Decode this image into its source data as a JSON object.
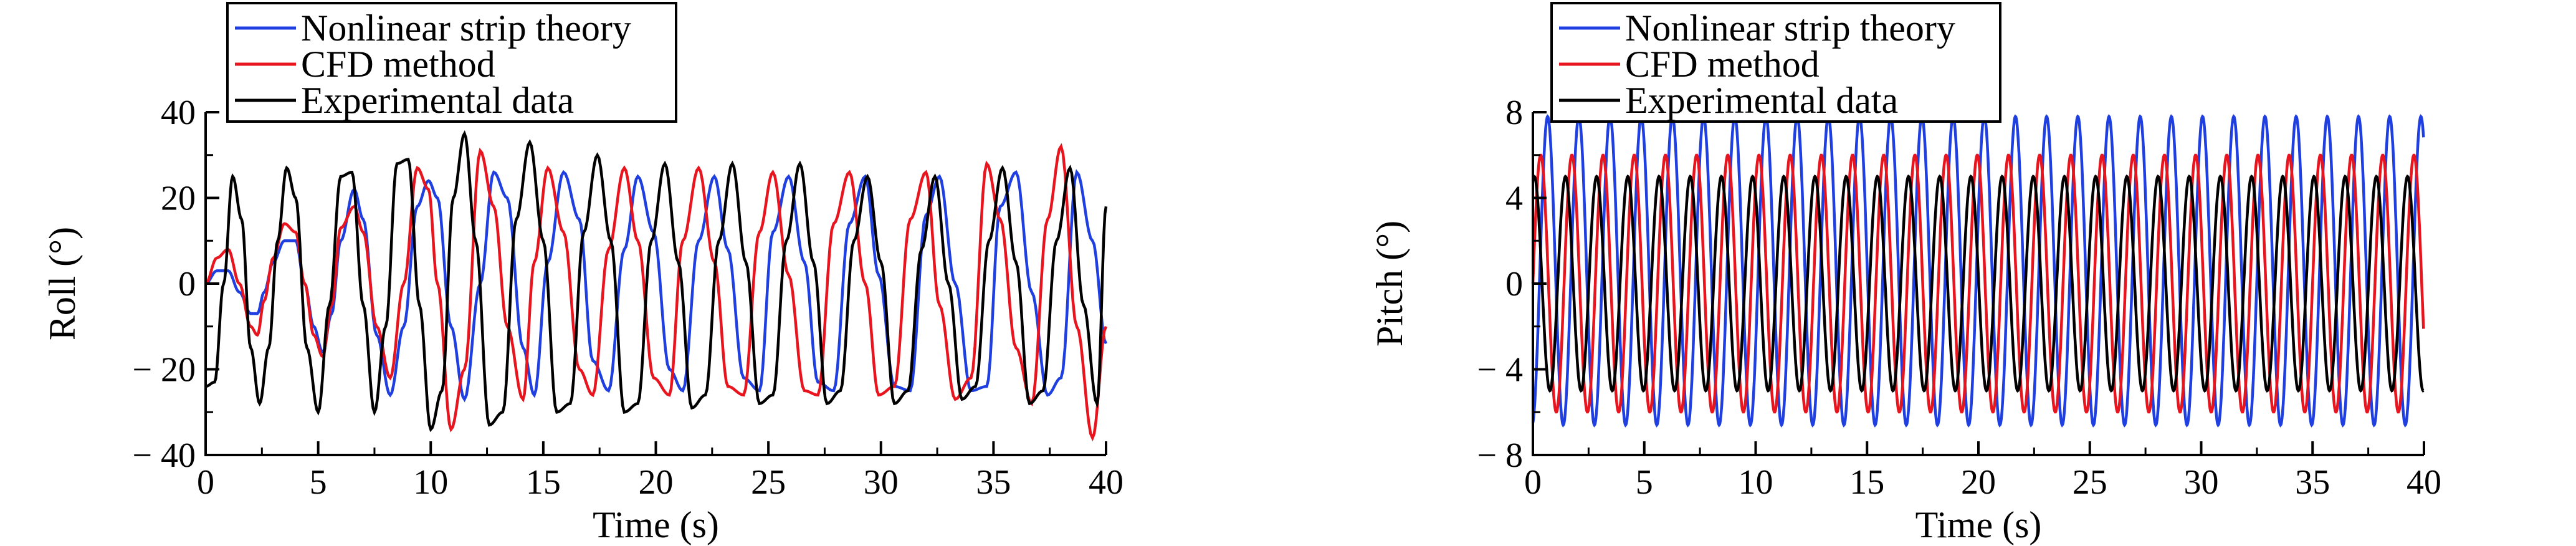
{
  "colors": {
    "nonlinear": "#1f3fe0",
    "cfd": "#e8141e",
    "experimental": "#000000",
    "axis": "#000000"
  },
  "chart_data": [
    {
      "type": "line",
      "title": "",
      "xlabel": "Time (s)",
      "ylabel": "Roll (°)",
      "xlim": [
        0,
        40
      ],
      "ylim": [
        -40,
        40
      ],
      "xticks": [
        0,
        5,
        10,
        15,
        20,
        25,
        30,
        35,
        40
      ],
      "yticks": [
        40,
        20,
        0,
        -20,
        -40
      ],
      "ytick_labels": [
        "40",
        "20",
        "0",
        "− 20",
        "− 40"
      ],
      "grid": false,
      "legend_position": "top-left, above plot",
      "series": [
        {
          "name": "Nonlinear strip theory",
          "color": "#1f3fe0",
          "x": [
            0,
            0.5,
            1.0,
            1.5,
            2.0,
            2.3,
            2.6,
            3.0,
            3.5,
            4.0,
            4.4,
            4.8,
            5.2,
            5.6,
            6.0,
            6.6,
            7.0,
            7.6,
            8.2,
            8.8,
            9.4,
            9.9,
            10.3,
            10.9,
            11.5,
            12.2,
            12.8,
            13.4,
            14.1,
            14.6,
            15.2,
            15.9,
            16.6,
            17.2,
            17.9,
            18.6,
            19.2,
            19.9,
            20.6,
            21.2,
            21.9,
            22.6,
            23.2,
            23.9,
            24.6,
            25.2,
            25.9,
            26.6,
            27.2,
            27.9,
            28.6,
            29.3,
            29.9,
            30.6,
            31.3,
            32.0,
            32.6,
            33.3,
            34.0,
            34.7,
            35.3,
            36.0,
            36.7,
            37.4,
            38.0,
            38.7,
            39.4,
            40.0
          ],
          "values": [
            0,
            3,
            3,
            -2,
            -7,
            -7,
            -2,
            5,
            10,
            10,
            0,
            -10,
            -16,
            -7,
            10,
            22,
            15,
            -12,
            -26,
            -10,
            18,
            24,
            20,
            -10,
            -27,
            0,
            26,
            20,
            -15,
            -26,
            5,
            26,
            15,
            -18,
            -25,
            8,
            25,
            12,
            -20,
            -25,
            10,
            25,
            8,
            -22,
            -25,
            12,
            25,
            5,
            -23,
            -25,
            14,
            25,
            2,
            -24,
            -25,
            16,
            25,
            0,
            -25,
            -24,
            18,
            26,
            -2,
            -26,
            -22,
            26,
            10,
            -14
          ]
        },
        {
          "name": "CFD method",
          "color": "#e8141e",
          "x": [
            0,
            0.5,
            1.0,
            1.5,
            2.0,
            2.3,
            2.6,
            3.0,
            3.5,
            4.0,
            4.4,
            4.8,
            5.2,
            5.6,
            6.0,
            6.6,
            7.0,
            7.6,
            8.2,
            8.8,
            9.4,
            9.9,
            10.3,
            10.9,
            11.5,
            12.2,
            12.8,
            13.4,
            14.1,
            14.6,
            15.2,
            15.9,
            16.6,
            17.2,
            17.9,
            18.6,
            19.2,
            19.9,
            20.6,
            21.2,
            21.9,
            22.6,
            23.2,
            23.9,
            24.6,
            25.2,
            25.9,
            26.6,
            27.2,
            27.9,
            28.6,
            29.3,
            29.9,
            30.6,
            31.3,
            32.0,
            32.6,
            33.3,
            34.0,
            34.7,
            35.3,
            36.0,
            36.7,
            37.4,
            38.0,
            38.7,
            39.4,
            40.0
          ],
          "values": [
            0,
            6,
            8,
            0,
            -10,
            -12,
            -4,
            6,
            14,
            12,
            0,
            -12,
            -17,
            -5,
            13,
            18,
            12,
            -10,
            -22,
            0,
            27,
            22,
            0,
            -34,
            -20,
            31,
            18,
            -10,
            -27,
            5,
            27,
            12,
            -20,
            -26,
            8,
            27,
            10,
            -22,
            -26,
            10,
            27,
            5,
            -24,
            -26,
            12,
            26,
            2,
            -25,
            -26,
            14,
            26,
            0,
            -26,
            -24,
            15,
            26,
            -5,
            -27,
            -22,
            28,
            15,
            -15,
            -28,
            15,
            32,
            -10,
            -36,
            -10
          ]
        },
        {
          "name": "Experimental data",
          "color": "#000000",
          "x": [
            0,
            0.4,
            0.8,
            1.2,
            1.6,
            2.0,
            2.4,
            2.8,
            3.2,
            3.6,
            4.0,
            4.5,
            5.0,
            5.5,
            6.0,
            6.5,
            7.0,
            7.5,
            8.0,
            8.5,
            9.0,
            9.5,
            10.0,
            10.5,
            11.0,
            11.5,
            12.0,
            12.6,
            13.2,
            13.8,
            14.4,
            15.0,
            15.6,
            16.2,
            16.8,
            17.4,
            18.0,
            18.6,
            19.2,
            19.8,
            20.4,
            21.0,
            21.6,
            22.2,
            22.8,
            23.4,
            24.0,
            24.6,
            25.2,
            25.8,
            26.4,
            27.0,
            27.6,
            28.2,
            28.8,
            29.4,
            30.0,
            30.6,
            31.2,
            31.8,
            32.4,
            33.0,
            33.6,
            34.2,
            34.8,
            35.4,
            36.0,
            36.6,
            37.2,
            37.8,
            38.4,
            39.0,
            39.6,
            40.0
          ],
          "values": [
            -24,
            -23,
            0,
            25,
            15,
            -15,
            -28,
            -15,
            10,
            27,
            20,
            -15,
            -30,
            -5,
            25,
            26,
            -5,
            -30,
            -10,
            28,
            29,
            -5,
            -34,
            -25,
            20,
            35,
            10,
            -33,
            -30,
            15,
            33,
            10,
            -30,
            -28,
            12,
            30,
            10,
            -30,
            -28,
            10,
            28,
            5,
            -29,
            -26,
            10,
            28,
            5,
            -28,
            -26,
            10,
            28,
            5,
            -28,
            -25,
            10,
            25,
            5,
            -28,
            -25,
            8,
            25,
            0,
            -27,
            -24,
            10,
            27,
            5,
            -28,
            -25,
            10,
            27,
            -5,
            -28,
            18
          ]
        }
      ]
    },
    {
      "type": "line",
      "title": "",
      "xlabel": "Time (s)",
      "ylabel": "Pitch (°)",
      "xlim": [
        0,
        40
      ],
      "ylim": [
        -8,
        8
      ],
      "xticks": [
        0,
        5,
        10,
        15,
        20,
        25,
        30,
        35,
        40
      ],
      "yticks": [
        8,
        4,
        0,
        -4,
        -8
      ],
      "ytick_labels": [
        "8",
        "4",
        "0",
        "− 4",
        "− 8"
      ],
      "grid": false,
      "legend_position": "top-left, above plot",
      "series": [
        {
          "name": "Nonlinear strip theory",
          "color": "#1f3fe0",
          "period_s": 1.4,
          "amplitude_deg": 7.2,
          "mean_deg": 0.6,
          "start_deg": -6.5
        },
        {
          "name": "CFD method",
          "color": "#e8141e",
          "period_s": 1.4,
          "amplitude_deg": 6.0,
          "mean_deg": 0.0,
          "start_deg": 0
        },
        {
          "name": "Experimental data",
          "color": "#000000",
          "period_s": 1.4,
          "amplitude_deg": 5.0,
          "mean_deg": 0.0,
          "start_deg": 4.8
        }
      ]
    }
  ]
}
